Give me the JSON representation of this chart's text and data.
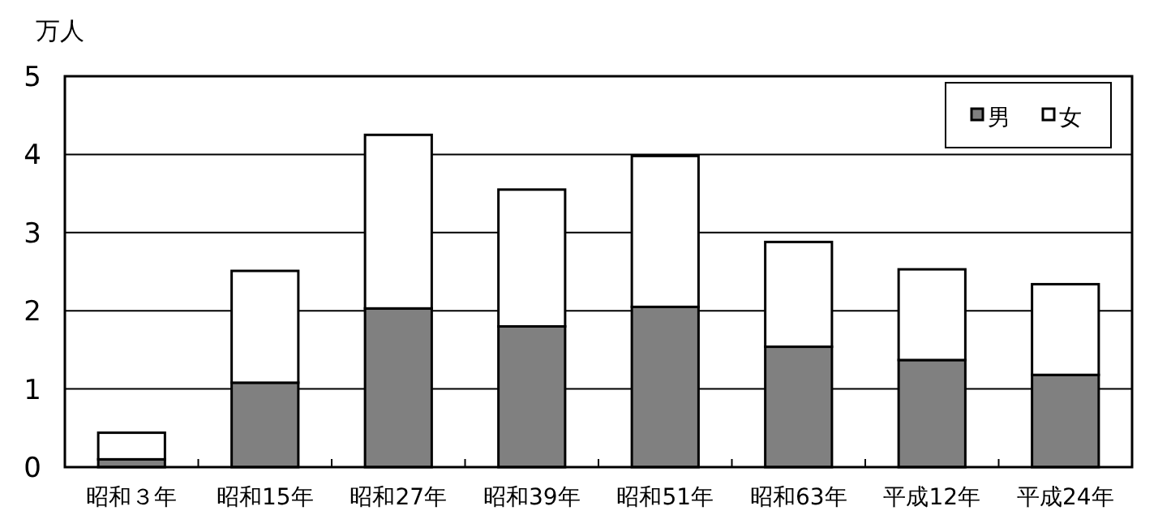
{
  "chart_data": {
    "type": "bar",
    "stacked": true,
    "ylabel": "万人",
    "categories": [
      "昭和３年",
      "昭和15年",
      "昭和27年",
      "昭和39年",
      "昭和51年",
      "昭和63年",
      "平成12年",
      "平成24年"
    ],
    "series": [
      {
        "name": "男",
        "color": "#808080",
        "values": [
          0.1,
          1.08,
          2.03,
          1.8,
          2.05,
          1.54,
          1.37,
          1.18
        ]
      },
      {
        "name": "女",
        "color": "#ffffff",
        "values": [
          0.34,
          1.43,
          2.22,
          1.75,
          1.93,
          1.34,
          1.16,
          1.16
        ]
      }
    ],
    "ylim": [
      0,
      5
    ],
    "yticks": [
      0,
      1,
      2,
      3,
      4,
      5
    ],
    "grid": "y",
    "legend": "top right"
  }
}
